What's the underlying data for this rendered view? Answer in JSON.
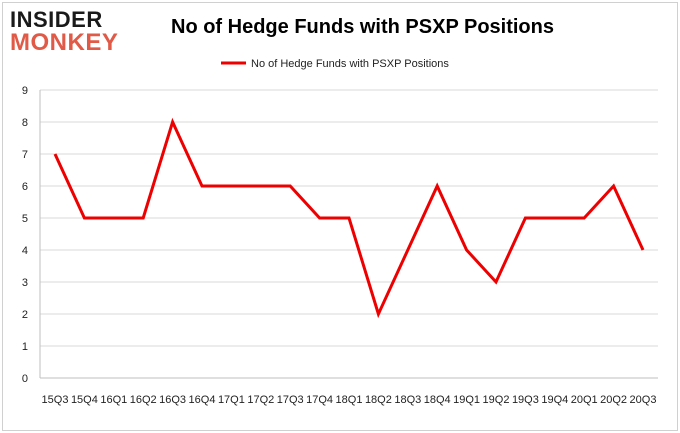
{
  "logo": {
    "line1": "INSIDER",
    "line2": "MONKEY"
  },
  "chart_data": {
    "type": "line",
    "title": "No of Hedge Funds with PSXP Positions",
    "categories": [
      "15Q3",
      "15Q4",
      "16Q1",
      "16Q2",
      "16Q3",
      "16Q4",
      "17Q1",
      "17Q2",
      "17Q3",
      "17Q4",
      "18Q1",
      "18Q2",
      "18Q3",
      "18Q4",
      "19Q1",
      "19Q2",
      "19Q3",
      "19Q4",
      "20Q1",
      "20Q2",
      "20Q3"
    ],
    "series": [
      {
        "name": "No of Hedge Funds with PSXP Positions",
        "values": [
          7,
          5,
          5,
          5,
          8,
          6,
          6,
          6,
          6,
          5,
          5,
          2,
          4,
          6,
          4,
          3,
          5,
          5,
          5,
          6,
          4
        ],
        "color": "#ee0000"
      }
    ],
    "xlabel": "",
    "ylabel": "",
    "ylim": [
      0,
      9
    ],
    "yticks": [
      0,
      1,
      2,
      3,
      4,
      5,
      6,
      7,
      8,
      9
    ],
    "grid": true,
    "legend": "top-center"
  }
}
